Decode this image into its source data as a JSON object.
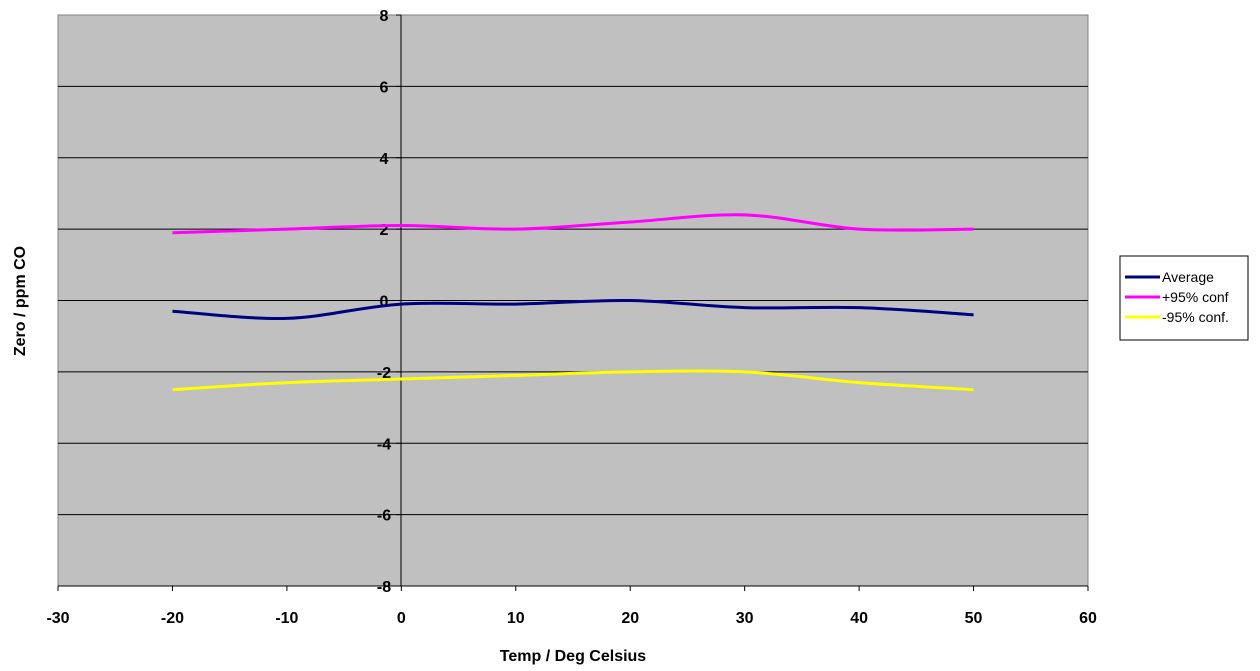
{
  "chart_data": {
    "type": "line",
    "title": "",
    "xlabel": "Temp / Deg Celsius",
    "ylabel": "Zero / ppm CO",
    "xlim": [
      -30,
      60
    ],
    "ylim": [
      -8,
      8
    ],
    "xticks": [
      -30,
      -20,
      -10,
      0,
      10,
      20,
      30,
      40,
      50,
      60
    ],
    "yticks": [
      -8,
      -6,
      -4,
      -2,
      0,
      2,
      4,
      6,
      8
    ],
    "grid": true,
    "legend_position": "right",
    "plot_background": "#c0c0c0",
    "x": [
      -20,
      -10,
      0,
      10,
      20,
      30,
      40,
      50
    ],
    "series": [
      {
        "name": "Average",
        "color": "#000080",
        "values": [
          -0.3,
          -0.5,
          -0.1,
          -0.1,
          0.0,
          -0.2,
          -0.2,
          -0.4
        ]
      },
      {
        "name": "+95% conf",
        "color": "#ff00ff",
        "values": [
          1.9,
          2.0,
          2.1,
          2.0,
          2.2,
          2.4,
          2.0,
          2.0
        ]
      },
      {
        "name": "-95% conf.",
        "color": "#ffff00",
        "values": [
          -2.5,
          -2.3,
          -2.2,
          -2.1,
          -2.0,
          -2.0,
          -2.3,
          -2.5
        ]
      }
    ]
  }
}
